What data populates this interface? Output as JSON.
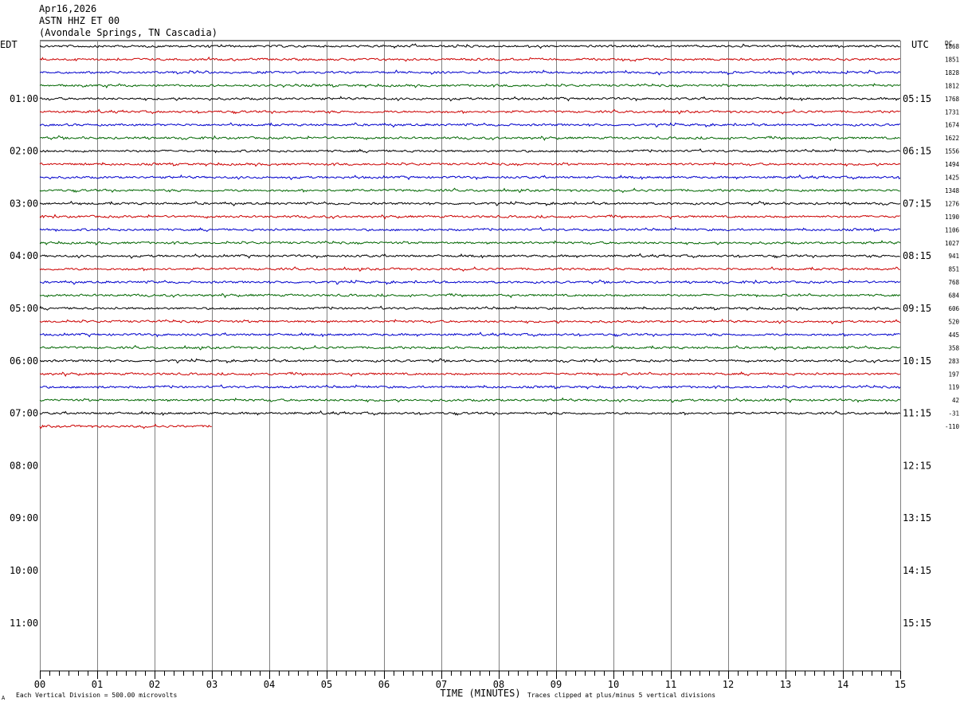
{
  "header": {
    "date": "Apr16,2026",
    "station": "ASTN HHZ ET 00",
    "location": "(Avondale Springs, TN Cascadia)"
  },
  "labels": {
    "left_timezone": "EDT",
    "right_timezone": "UTC",
    "dc_header": "DC",
    "xlabel": "TIME (MINUTES)",
    "footer_left": "Each Vertical Division =  500.00 microvolts",
    "footer_right": "Traces clipped at plus/minus 5 vertical divisions",
    "corner_mark": "A"
  },
  "chart_data": {
    "type": "line",
    "title": "ASTN HHZ ET 00",
    "xlabel": "TIME (MINUTES)",
    "xlim": [
      0,
      15
    ],
    "x_ticks": [
      "00",
      "01",
      "02",
      "03",
      "04",
      "05",
      "06",
      "07",
      "08",
      "09",
      "10",
      "11",
      "12",
      "13",
      "14",
      "15"
    ],
    "left_hour_labels": [
      "01:00",
      "02:00",
      "03:00",
      "04:00",
      "05:00",
      "06:00",
      "07:00",
      "08:00",
      "09:00",
      "10:00",
      "11:00"
    ],
    "right_hour_labels": [
      "05:15",
      "06:15",
      "07:15",
      "08:15",
      "09:15",
      "10:15",
      "11:15",
      "12:15",
      "13:15",
      "14:15",
      "15:15"
    ],
    "trace_colors": [
      "#000000",
      "#cc0000",
      "#0000cc",
      "#006600"
    ],
    "grid": true,
    "trace_interval_minutes": 15,
    "total_slots": 48,
    "traces": [
      {
        "dc": "1868",
        "duration_minutes": 15
      },
      {
        "dc": "1851",
        "duration_minutes": 15
      },
      {
        "dc": "1828",
        "duration_minutes": 15
      },
      {
        "dc": "1812",
        "duration_minutes": 15
      },
      {
        "dc": "1768",
        "duration_minutes": 15
      },
      {
        "dc": "1731",
        "duration_minutes": 15
      },
      {
        "dc": "1674",
        "duration_minutes": 15
      },
      {
        "dc": "1622",
        "duration_minutes": 15
      },
      {
        "dc": "1556",
        "duration_minutes": 15
      },
      {
        "dc": "1494",
        "duration_minutes": 15
      },
      {
        "dc": "1425",
        "duration_minutes": 15
      },
      {
        "dc": "1348",
        "duration_minutes": 15
      },
      {
        "dc": "1276",
        "duration_minutes": 15
      },
      {
        "dc": "1190",
        "duration_minutes": 15
      },
      {
        "dc": "1106",
        "duration_minutes": 15
      },
      {
        "dc": "1027",
        "duration_minutes": 15
      },
      {
        "dc": "941",
        "duration_minutes": 15
      },
      {
        "dc": "851",
        "duration_minutes": 15
      },
      {
        "dc": "768",
        "duration_minutes": 15
      },
      {
        "dc": "684",
        "duration_minutes": 15
      },
      {
        "dc": "606",
        "duration_minutes": 15
      },
      {
        "dc": "520",
        "duration_minutes": 15
      },
      {
        "dc": "445",
        "duration_minutes": 15
      },
      {
        "dc": "358",
        "duration_minutes": 15
      },
      {
        "dc": "283",
        "duration_minutes": 15
      },
      {
        "dc": "197",
        "duration_minutes": 15
      },
      {
        "dc": "119",
        "duration_minutes": 15
      },
      {
        "dc": "42",
        "duration_minutes": 15
      },
      {
        "dc": "-31",
        "duration_minutes": 15
      },
      {
        "dc": "-110",
        "duration_minutes": 3
      }
    ]
  }
}
